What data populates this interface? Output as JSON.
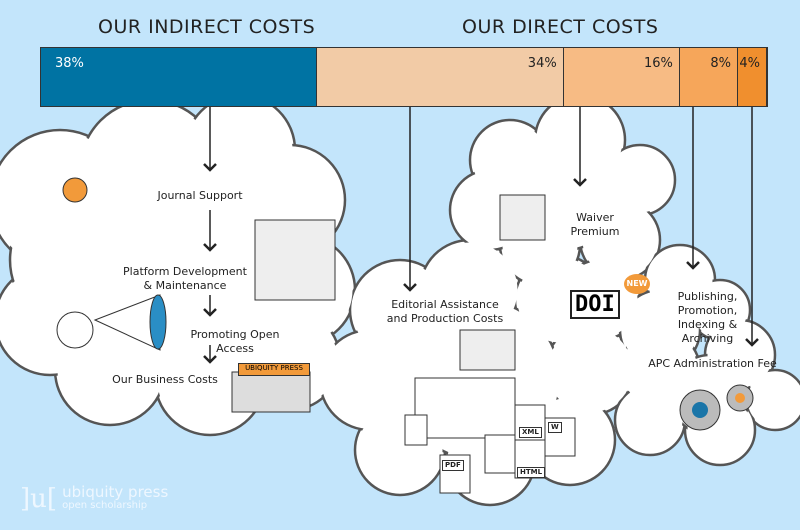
{
  "headings": {
    "indirect": "OUR INDIRECT COSTS",
    "direct": "OUR DIRECT COSTS"
  },
  "chart_data": {
    "type": "bar",
    "stacked": true,
    "categories": [
      "Indirect costs",
      "Editorial Assistance and Production Costs",
      "Waiver Premium",
      "Publishing, Promotion, Indexing & Archiving",
      "APC Administration Fee"
    ],
    "values": [
      38,
      34,
      16,
      8,
      4
    ],
    "labels": [
      "38%",
      "34%",
      "16%",
      "8%",
      "4%"
    ],
    "colors": [
      "#0073a3",
      "#f2cba6",
      "#f7bb84",
      "#f6a65a",
      "#f08f2e"
    ]
  },
  "indirect_items": [
    "Journal Support",
    "Platform Development & Maintenance",
    "Promoting Open Access",
    "Our Business Costs"
  ],
  "direct_items": {
    "editorial": "Editorial Assistance and Production Costs",
    "waiver": "Waiver Premium",
    "publishing": "Publishing, Promotion, Indexing & Archiving",
    "apc": "APC Administration Fee"
  },
  "illustration_text": {
    "building_sign": "UBIQUITY PRESS",
    "doi": "DOI",
    "new": "NEW",
    "files": [
      "PDF",
      "XML",
      "HTML",
      "W"
    ]
  },
  "logo": {
    "mark": "]u[",
    "name": "ubiquity press",
    "tagline": "open scholarship"
  }
}
